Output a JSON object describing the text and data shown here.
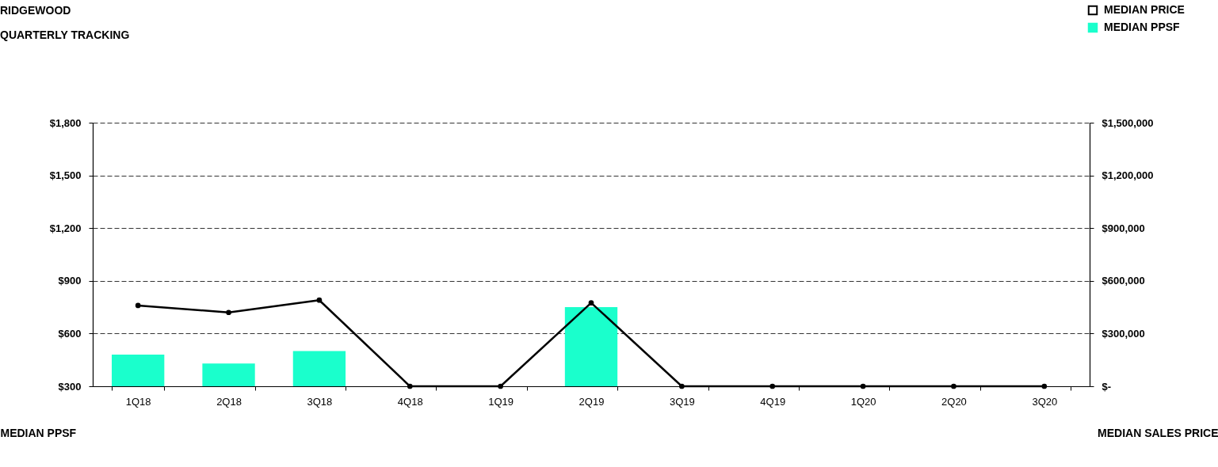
{
  "chart_data": {
    "type": "bar",
    "title": "RIDGEWOOD",
    "subtitle": "QUARTERLY TRACKING",
    "ylabel": "MEDIAN PPSF",
    "y2label": "MEDIAN SALES PRICE",
    "categories": [
      "1Q18",
      "2Q18",
      "3Q18",
      "4Q18",
      "1Q19",
      "2Q19",
      "3Q19",
      "4Q19",
      "1Q20",
      "2Q20",
      "3Q20"
    ],
    "series": [
      {
        "name": "MEDIAN PRICE",
        "type": "line",
        "axis": "y2",
        "color": "#000000",
        "values": [
          460000,
          420000,
          490000,
          0,
          0,
          475000,
          0,
          0,
          0,
          0,
          0
        ]
      },
      {
        "name": "MEDIAN PPSF",
        "color": "#1affcc",
        "values": [
          480,
          430,
          500,
          null,
          null,
          750,
          null,
          null,
          null,
          null,
          null
        ]
      }
    ],
    "ylim": [
      300,
      1800
    ],
    "yticks": [
      {
        "value": 300,
        "label": "$300"
      },
      {
        "value": 600,
        "label": "$600"
      },
      {
        "value": 900,
        "label": "$900"
      },
      {
        "value": 1200,
        "label": "$1,200"
      },
      {
        "value": 1500,
        "label": "$1,500"
      },
      {
        "value": 1800,
        "label": "$1,800"
      }
    ],
    "y2lim": [
      0,
      1500000
    ],
    "y2ticks": [
      {
        "value": 0,
        "label": "$-"
      },
      {
        "value": 300000,
        "label": "$300,000"
      },
      {
        "value": 600000,
        "label": "$600,000"
      },
      {
        "value": 900000,
        "label": "$900,000"
      },
      {
        "value": 1200000,
        "label": "$1,200,000"
      },
      {
        "value": 1500000,
        "label": "$1,500,000"
      }
    ],
    "grid": "y",
    "legend": "top right",
    "marker": "circle",
    "line_style": "solid"
  }
}
